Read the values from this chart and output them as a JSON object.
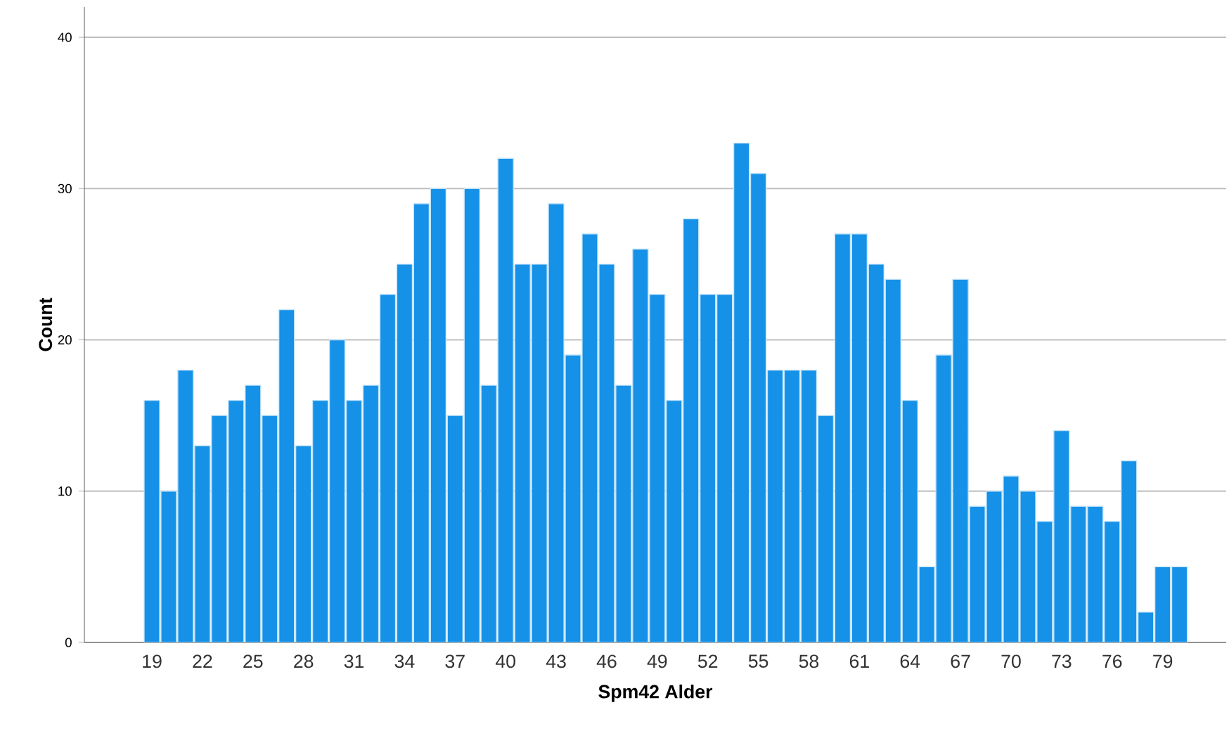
{
  "chart_data": {
    "type": "bar",
    "xlabel": "Spm42 Alder",
    "ylabel": "Count",
    "categories": [
      "19",
      null,
      null,
      "22",
      null,
      null,
      "25",
      null,
      null,
      "28",
      null,
      null,
      "31",
      null,
      null,
      "34",
      null,
      null,
      "37",
      null,
      null,
      "40",
      null,
      null,
      "43",
      null,
      null,
      "46",
      null,
      null,
      "49",
      null,
      null,
      "52",
      null,
      null,
      "55",
      null,
      null,
      "58",
      null,
      null,
      "61",
      null,
      null,
      "64",
      null,
      null,
      "67",
      null,
      null,
      "70",
      null,
      null,
      "73",
      null,
      null,
      "76",
      null,
      null,
      "79",
      null
    ],
    "values": [
      16,
      10,
      18,
      13,
      15,
      16,
      17,
      15,
      22,
      13,
      16,
      20,
      16,
      17,
      23,
      25,
      29,
      30,
      15,
      30,
      17,
      32,
      25,
      25,
      29,
      19,
      27,
      25,
      17,
      26,
      23,
      16,
      28,
      23,
      23,
      33,
      31,
      18,
      18,
      18,
      15,
      27,
      27,
      25,
      24,
      16,
      5,
      19,
      24,
      9,
      10,
      11,
      10,
      8,
      14,
      9,
      9,
      8,
      12,
      2,
      5,
      5
    ],
    "color": "#1591e8",
    "ylim": [
      0,
      42
    ],
    "yticks": [
      0,
      10,
      20,
      30,
      40
    ],
    "grid": "y"
  }
}
